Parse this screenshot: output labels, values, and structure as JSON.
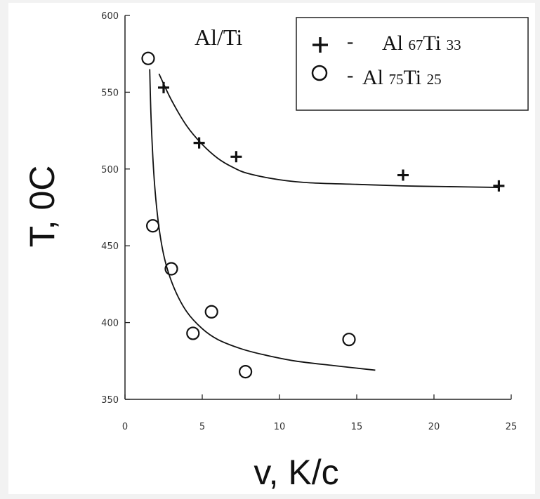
{
  "chart_data": {
    "type": "scatter",
    "title": "Al/Ti",
    "xlabel": "v, K/c",
    "ylabel": "T, 0C",
    "xlim": [
      0,
      25
    ],
    "ylim": [
      350,
      600
    ],
    "x_ticks": [
      "0",
      "5",
      "10",
      "15",
      "20",
      "25"
    ],
    "y_ticks": [
      "350",
      "400",
      "450",
      "500",
      "550",
      "600"
    ],
    "grid": false,
    "legend_position": "top-right",
    "series": [
      {
        "name": "Al 67Ti 33",
        "label_parts": {
          "el1": "Al",
          "sub1": "67",
          "el2": "Ti",
          "sub2": "33"
        },
        "marker": "plus",
        "points": [
          {
            "x": 2.5,
            "y": 553
          },
          {
            "x": 4.8,
            "y": 517
          },
          {
            "x": 7.2,
            "y": 508
          },
          {
            "x": 18.0,
            "y": 496
          },
          {
            "x": 24.2,
            "y": 489
          }
        ],
        "fit": [
          {
            "x": 2.2,
            "y": 562
          },
          {
            "x": 3,
            "y": 545
          },
          {
            "x": 4,
            "y": 528
          },
          {
            "x": 5,
            "y": 516
          },
          {
            "x": 6,
            "y": 507
          },
          {
            "x": 7,
            "y": 501
          },
          {
            "x": 8,
            "y": 497
          },
          {
            "x": 10,
            "y": 493
          },
          {
            "x": 12,
            "y": 491
          },
          {
            "x": 15,
            "y": 490
          },
          {
            "x": 18,
            "y": 489
          },
          {
            "x": 21,
            "y": 488.5
          },
          {
            "x": 24.2,
            "y": 488
          }
        ]
      },
      {
        "name": "Al 75Ti 25",
        "label_parts": {
          "el1": "Al",
          "sub1": "75",
          "el2": "Ti",
          "sub2": "25"
        },
        "marker": "circle",
        "points": [
          {
            "x": 1.5,
            "y": 572
          },
          {
            "x": 1.8,
            "y": 463
          },
          {
            "x": 3.0,
            "y": 435
          },
          {
            "x": 5.6,
            "y": 407
          },
          {
            "x": 4.4,
            "y": 393
          },
          {
            "x": 7.8,
            "y": 368
          },
          {
            "x": 14.5,
            "y": 389
          }
        ],
        "fit": [
          {
            "x": 1.6,
            "y": 565
          },
          {
            "x": 1.7,
            "y": 530
          },
          {
            "x": 1.9,
            "y": 492
          },
          {
            "x": 2.2,
            "y": 462
          },
          {
            "x": 2.6,
            "y": 440
          },
          {
            "x": 3.2,
            "y": 422
          },
          {
            "x": 4,
            "y": 407
          },
          {
            "x": 5,
            "y": 396
          },
          {
            "x": 6,
            "y": 389
          },
          {
            "x": 7.5,
            "y": 383
          },
          {
            "x": 9,
            "y": 379
          },
          {
            "x": 11,
            "y": 375
          },
          {
            "x": 13.5,
            "y": 372
          },
          {
            "x": 16.2,
            "y": 369
          }
        ]
      }
    ]
  }
}
